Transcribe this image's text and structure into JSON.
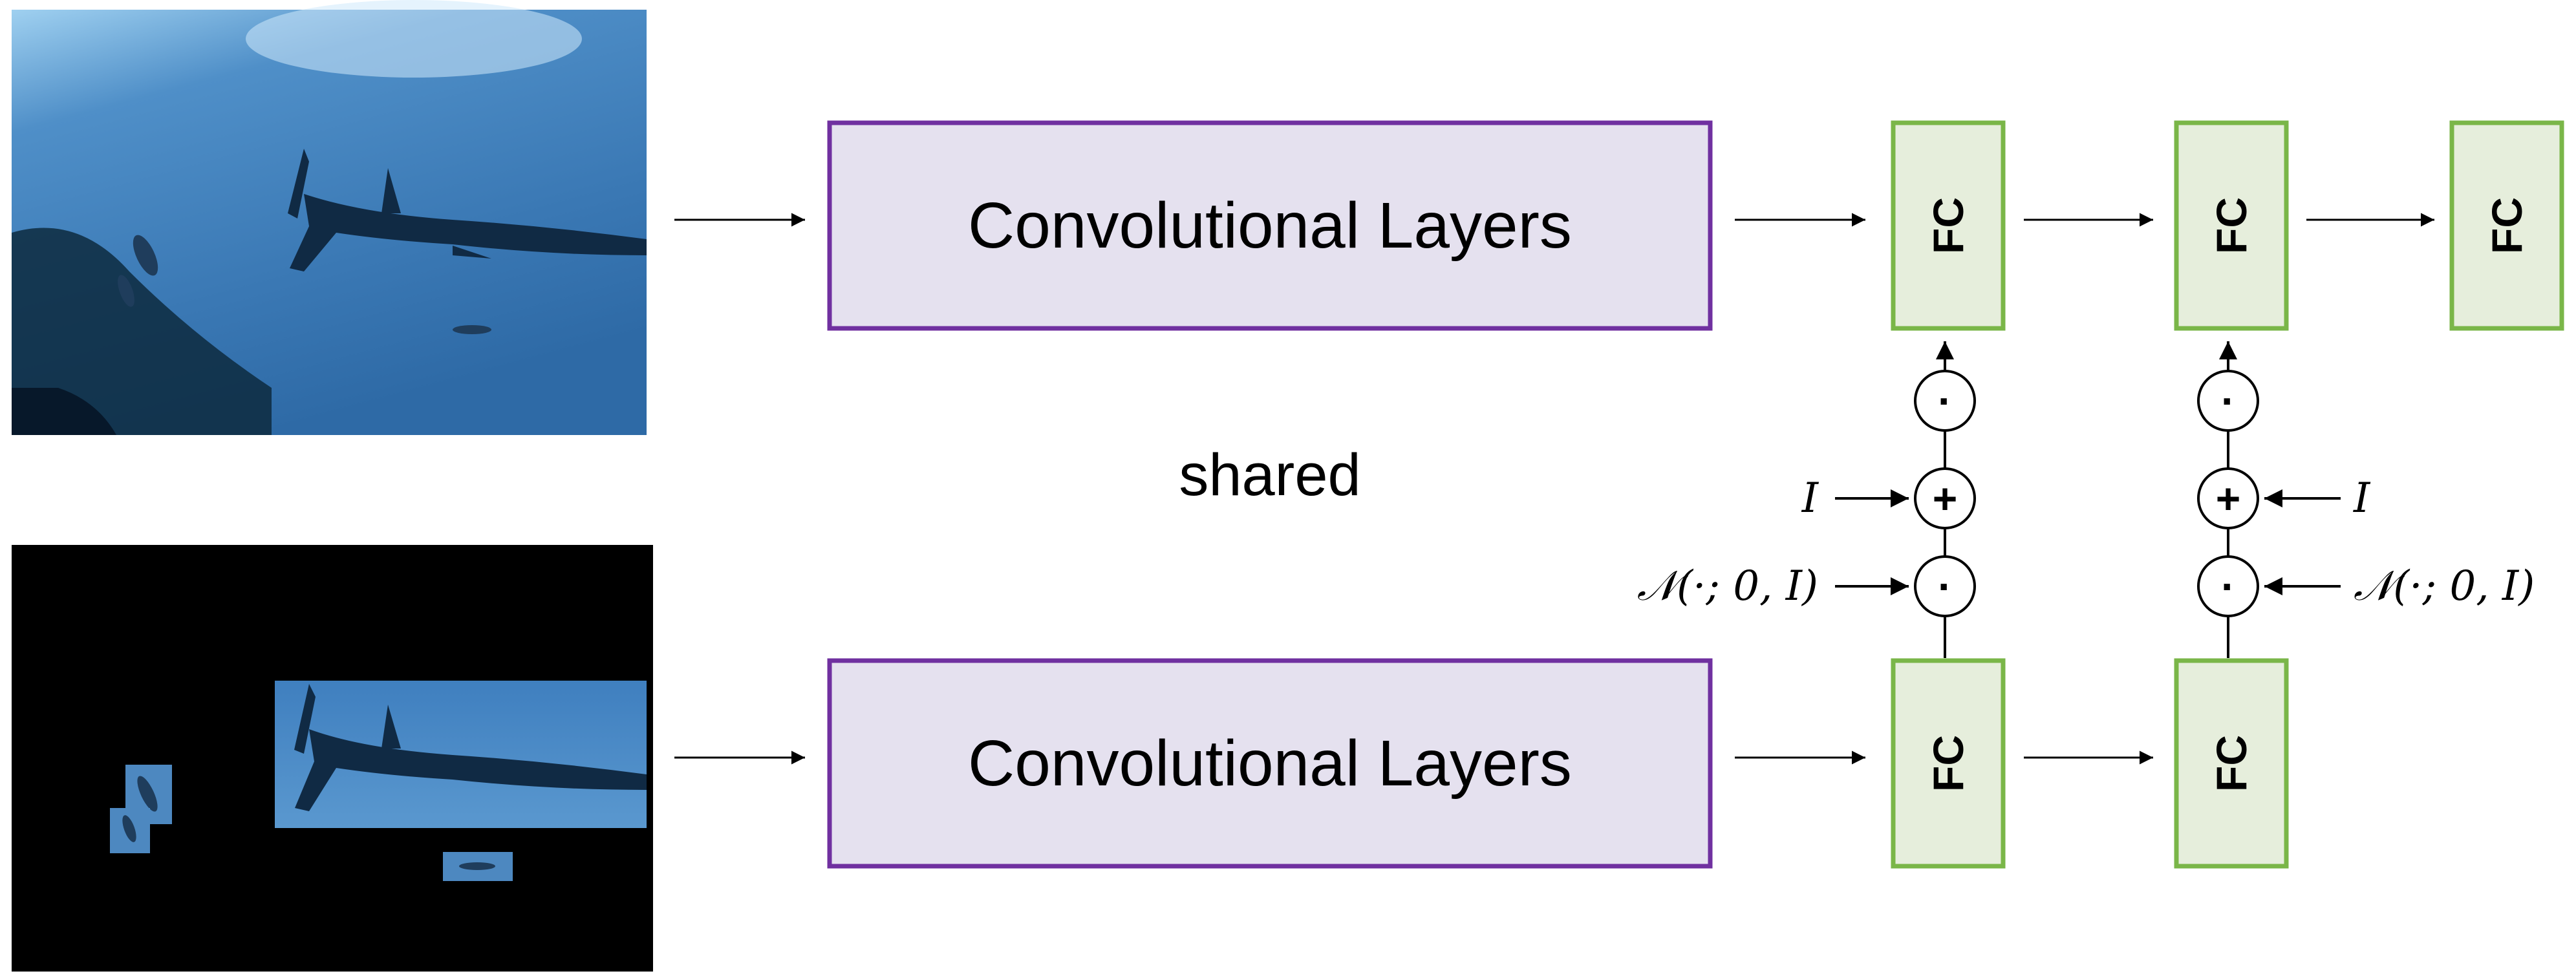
{
  "conv_label": "Convolutional Layers",
  "fc_label": "FC",
  "shared_label": "shared",
  "identity_label": "I",
  "noise_label": "𝒩(·; 0, I)",
  "dot_op": "·",
  "plus_op": "+",
  "colors": {
    "conv_fill": "#e5e1ef",
    "conv_stroke": "#7030a0",
    "fc_fill": "#e6eedc",
    "fc_stroke": "#7ab648",
    "photo_water_dark": "#1a3f6e",
    "photo_water_light": "#5a9ad0",
    "background_black": "#000000"
  }
}
